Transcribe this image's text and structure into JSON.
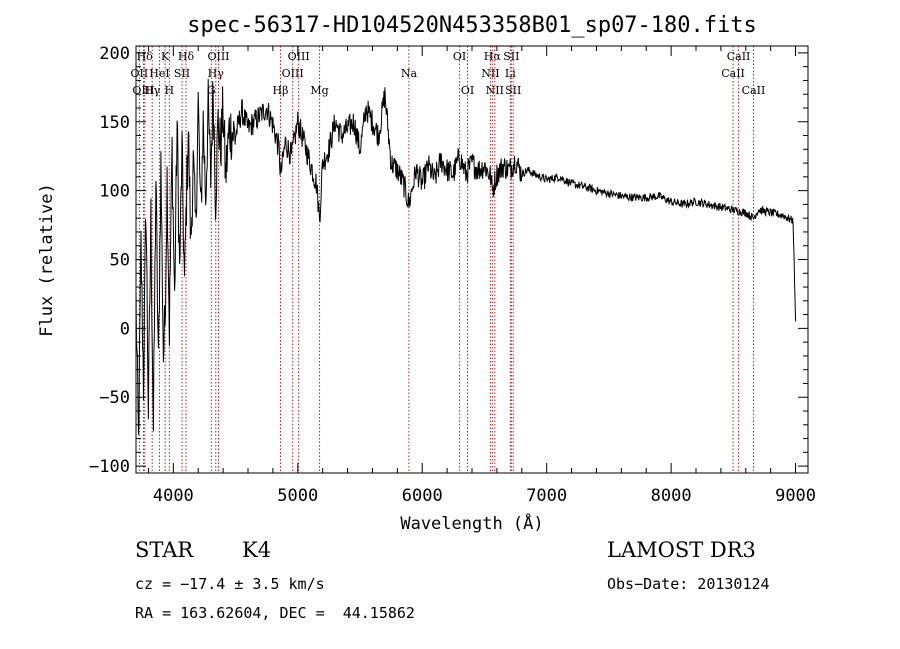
{
  "chart_data": {
    "type": "line",
    "title": "spec-56317-HD104520N453358B01_sp07-180.fits",
    "xlabel": "Wavelength (Å)",
    "ylabel": "Flux (relative)",
    "xlim": [
      3700,
      9100
    ],
    "ylim": [
      -105,
      205
    ],
    "xticks": [
      4000,
      5000,
      6000,
      7000,
      8000,
      9000
    ],
    "yticks": [
      -100,
      -50,
      0,
      50,
      100,
      150,
      200
    ],
    "series": [
      {
        "name": "flux",
        "x": [
          3700,
          3720,
          3740,
          3760,
          3780,
          3800,
          3820,
          3840,
          3860,
          3880,
          3900,
          3920,
          3933,
          3950,
          3968,
          3990,
          4010,
          4030,
          4050,
          4070,
          4090,
          4102,
          4120,
          4140,
          4160,
          4180,
          4200,
          4220,
          4240,
          4260,
          4280,
          4300,
          4320,
          4340,
          4360,
          4380,
          4400,
          4420,
          4450,
          4500,
          4550,
          4600,
          4650,
          4700,
          4750,
          4800,
          4850,
          4861,
          4900,
          4950,
          5000,
          5050,
          5100,
          5150,
          5175,
          5200,
          5250,
          5300,
          5350,
          5400,
          5450,
          5500,
          5550,
          5600,
          5650,
          5700,
          5750,
          5800,
          5850,
          5893,
          5950,
          6000,
          6050,
          6100,
          6150,
          6200,
          6250,
          6300,
          6350,
          6400,
          6450,
          6500,
          6550,
          6563,
          6600,
          6650,
          6700,
          6750,
          6800,
          6850,
          6900,
          6950,
          7000,
          7100,
          7200,
          7300,
          7400,
          7500,
          7600,
          7700,
          7800,
          7900,
          8000,
          8100,
          8200,
          8300,
          8400,
          8500,
          8542,
          8600,
          8662,
          8700,
          8800,
          8900,
          8980,
          9000
        ],
        "values": [
          20,
          -85,
          60,
          -40,
          90,
          -60,
          80,
          -75,
          110,
          -30,
          120,
          -20,
          5,
          110,
          0,
          130,
          20,
          150,
          40,
          130,
          30,
          80,
          145,
          60,
          120,
          70,
          165,
          80,
          150,
          95,
          160,
          110,
          175,
          95,
          150,
          130,
          160,
          110,
          145,
          140,
          158,
          145,
          150,
          155,
          160,
          148,
          130,
          110,
          135,
          125,
          150,
          135,
          120,
          105,
          80,
          120,
          130,
          150,
          140,
          145,
          150,
          130,
          160,
          150,
          140,
          170,
          120,
          115,
          105,
          90,
          115,
          105,
          118,
          108,
          122,
          115,
          112,
          125,
          112,
          120,
          115,
          118,
          110,
          100,
          112,
          118,
          115,
          122,
          112,
          115,
          112,
          110,
          108,
          110,
          105,
          103,
          100,
          98,
          96,
          95,
          95,
          96,
          92,
          90,
          92,
          90,
          88,
          86,
          85,
          84,
          80,
          86,
          84,
          82,
          78,
          5
        ]
      }
    ],
    "line_markers": [
      {
        "label": "Hδ",
        "x": 3770,
        "row": 1
      },
      {
        "label": "OII",
        "x": 3727,
        "row": 2
      },
      {
        "label": "OIII",
        "x": 3760,
        "row": 3
      },
      {
        "label": "K",
        "x": 3934,
        "row": 1
      },
      {
        "label": "HeI",
        "x": 3889,
        "row": 2
      },
      {
        "label": "Hγ",
        "x": 3830,
        "row": 3
      },
      {
        "label": "H",
        "x": 3968,
        "row": 3
      },
      {
        "label": "Hδ",
        "x": 4102,
        "row": 1
      },
      {
        "label": "SII",
        "x": 4070,
        "row": 2
      },
      {
        "label": "OIII",
        "x": 4363,
        "row": 1
      },
      {
        "label": "Hγ",
        "x": 4341,
        "row": 2
      },
      {
        "label": "G",
        "x": 4305,
        "row": 3
      },
      {
        "label": "Hβ",
        "x": 4861,
        "row": 3
      },
      {
        "label": "OIII",
        "x": 5007,
        "row": 1
      },
      {
        "label": "OIII",
        "x": 4959,
        "row": 2
      },
      {
        "label": "Mg",
        "x": 5175,
        "row": 3
      },
      {
        "label": "Na",
        "x": 5893,
        "row": 2
      },
      {
        "label": "OI",
        "x": 6300,
        "row": 1
      },
      {
        "label": "OI",
        "x": 6364,
        "row": 3
      },
      {
        "label": "Hα",
        "x": 6563,
        "row": 1
      },
      {
        "label": "NII",
        "x": 6548,
        "row": 2
      },
      {
        "label": "NII",
        "x": 6583,
        "row": 3
      },
      {
        "label": "SII",
        "x": 6716,
        "row": 1
      },
      {
        "label": "Li",
        "x": 6708,
        "row": 2
      },
      {
        "label": "SII",
        "x": 6731,
        "row": 3
      },
      {
        "label": "CaII",
        "x": 8542,
        "row": 1
      },
      {
        "label": "CaII",
        "x": 8498,
        "row": 2
      },
      {
        "label": "CaII",
        "x": 8662,
        "row": 3
      }
    ]
  },
  "info": {
    "object_type": "STAR",
    "subclass": "K4",
    "cz": "cz = −17.4 ± 3.5 km/s",
    "coords": "RA = 163.62604, DEC =  44.15862",
    "survey": "LAMOST DR3",
    "obs_date": "Obs−Date: 20130124"
  },
  "colors": {
    "axis": "#000000",
    "spectrum": "#000000",
    "marker_line": "#b22222"
  }
}
